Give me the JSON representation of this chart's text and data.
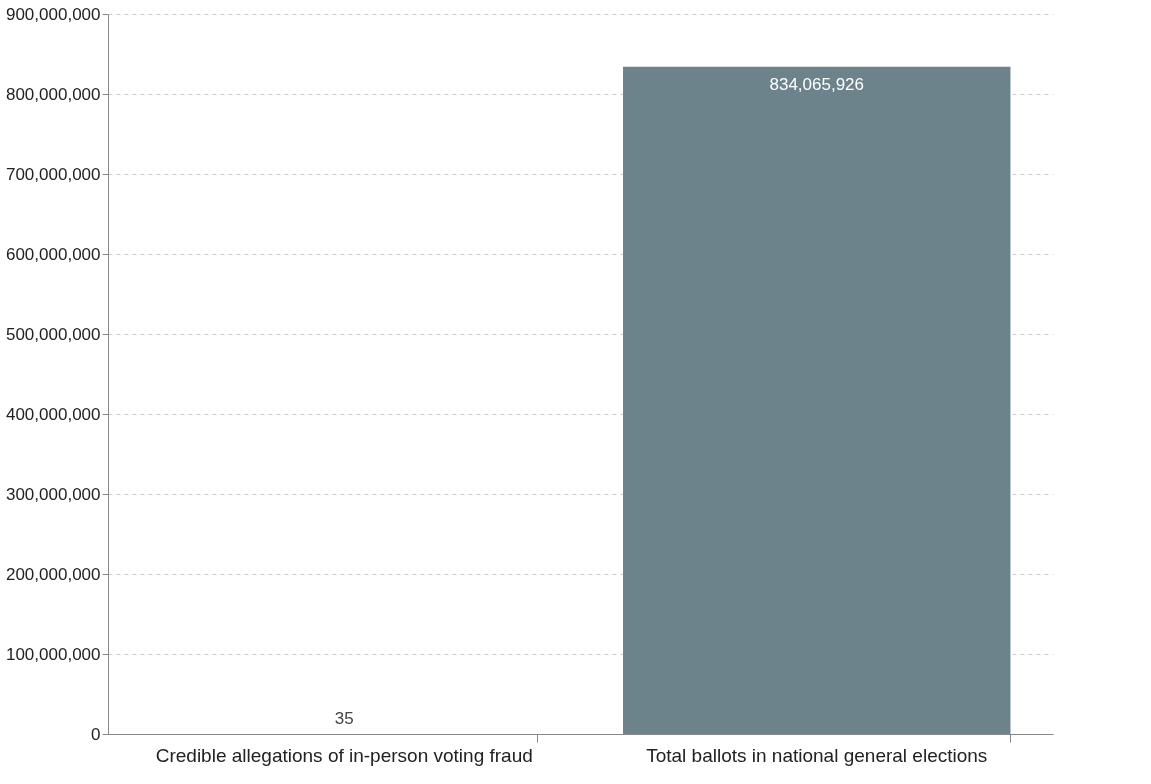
{
  "chart_data": {
    "type": "bar",
    "categories": [
      "Credible allegations of in-person voting fraud",
      "Total ballots in national general elections"
    ],
    "values": [
      35,
      834065926
    ],
    "color": "#6c838b",
    "value_labels": [
      "35",
      "834,065,926"
    ],
    "ylim": [
      0,
      900000000
    ],
    "yticks": [
      {
        "value": 0,
        "label": "0"
      },
      {
        "value": 100000000,
        "label": "100,000,000"
      },
      {
        "value": 200000000,
        "label": "200,000,000"
      },
      {
        "value": 300000000,
        "label": "300,000,000"
      },
      {
        "value": 400000000,
        "label": "400,000,000"
      },
      {
        "value": 500000000,
        "label": "500,000,000"
      },
      {
        "value": 600000000,
        "label": "600,000,000"
      },
      {
        "value": 700000000,
        "label": "700,000,000"
      },
      {
        "value": 800000000,
        "label": "800,000,000"
      },
      {
        "value": 900000000,
        "label": "900,000,000"
      }
    ],
    "grid": "y"
  }
}
